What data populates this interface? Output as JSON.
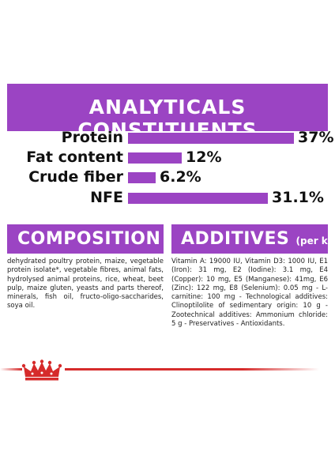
{
  "analytics": {
    "title": "ANALYTICALS CONSTITUENTS",
    "rows": [
      {
        "label": "Protein",
        "value": "37%",
        "fraction": 0.37
      },
      {
        "label": "Fat content",
        "value": "12%",
        "fraction": 0.12
      },
      {
        "label": "Crude fiber",
        "value": "6.2%",
        "fraction": 0.062
      },
      {
        "label": "NFE",
        "value": "31.1%",
        "fraction": 0.311
      }
    ]
  },
  "composition": {
    "title": "COMPOSITION",
    "text": "dehydrated poultry protein, maize, vegetable protein isolate*, vegetable fibres, animal fats, hydrolysed animal proteins, rice, wheat, beet pulp, maize gluten, yeasts and parts thereof, minerals, fish oil, fructo-oligo-saccharides, soya oil."
  },
  "additives": {
    "title": "ADDITIVES",
    "subtitle": "(per kg)",
    "text": "Vitamin A: 19000 IU, Vitamin D3: 1000 IU, E1 (Iron): 31 mg, E2 (Iodine): 3.1 mg, E4 (Copper): 10 mg, E5 (Manganese): 41mg, E6 (Zinc): 122 mg, E8 (Selenium): 0.05 mg - L- carnitine: 100 mg - Technological additives: Clinoptilolite of sedimentary origin: 10 g -Zootechnical additives: Ammonium chloride: 5 g - Preservatives - Antioxidants."
  },
  "colors": {
    "accent": "#9b44c3",
    "brand_red": "#d62b2b"
  },
  "icons": {
    "logo": "royal-canin-crown-icon"
  }
}
